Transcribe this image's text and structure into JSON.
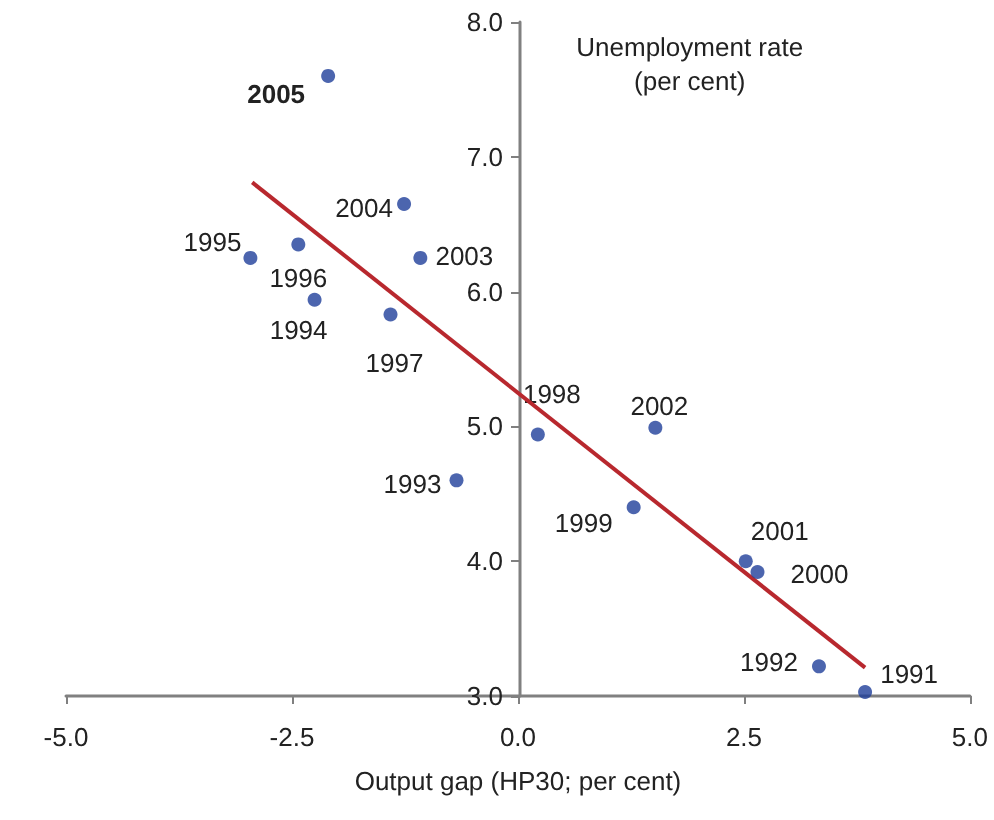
{
  "chart_data": {
    "type": "scatter",
    "xlabel": "Output gap (HP30; per cent)",
    "ylabel": "Unemployment rate\n(per cent)",
    "xlim": [
      -5,
      5
    ],
    "xticks": [
      {
        "value": -5,
        "label": "-5.0"
      },
      {
        "value": -2.5,
        "label": "-2.5"
      },
      {
        "value": 0,
        "label": "0.0"
      },
      {
        "value": 2.5,
        "label": "2.5"
      },
      {
        "value": 5,
        "label": "5.0"
      }
    ],
    "ylim": [
      3,
      8
    ],
    "yticks": [
      {
        "value": 3,
        "label": "3.0"
      },
      {
        "value": 4,
        "label": "4.0"
      },
      {
        "value": 5,
        "label": "5.0"
      },
      {
        "value": 6,
        "label": "6.0"
      },
      {
        "value": 7,
        "label": "7.0"
      },
      {
        "value": 8,
        "label": "8.0"
      }
    ],
    "grid": false,
    "marker": "circle",
    "series": [
      {
        "color": "#1f3f9a",
        "x": [
          3.84,
          3.33,
          -0.68,
          -2.25,
          -2.96,
          -2.43,
          -1.41,
          0.22,
          1.28,
          2.65,
          2.52,
          1.52,
          -1.08,
          -1.26,
          -2.1
        ],
        "values": [
          3.03,
          3.22,
          4.6,
          5.94,
          6.25,
          6.35,
          5.83,
          4.94,
          4.4,
          3.92,
          4.0,
          4.99,
          6.25,
          6.65,
          7.6
        ]
      },
      {
        "type": "line",
        "color": "#b8282e",
        "x": [
          -2.94,
          3.84
        ],
        "values": [
          6.81,
          3.21
        ],
        "marker": "none"
      }
    ],
    "annotations": [
      {
        "text": "1991",
        "x": 3.84,
        "y": 3.03
      },
      {
        "text": "1992",
        "x": 3.33,
        "y": 3.22
      },
      {
        "text": "1993",
        "x": -0.68,
        "y": 4.6
      },
      {
        "text": "1994",
        "x": -2.25,
        "y": 5.94
      },
      {
        "text": "1995",
        "x": -2.96,
        "y": 6.25
      },
      {
        "text": "1996",
        "x": -2.43,
        "y": 6.35
      },
      {
        "text": "1997",
        "x": -1.41,
        "y": 5.83
      },
      {
        "text": "1998",
        "x": 0.22,
        "y": 4.94
      },
      {
        "text": "1999",
        "x": 1.28,
        "y": 4.4
      },
      {
        "text": "2000",
        "x": 2.65,
        "y": 3.92
      },
      {
        "text": "2001",
        "x": 2.52,
        "y": 4.0
      },
      {
        "text": "2002",
        "x": 1.52,
        "y": 4.99
      },
      {
        "text": "2003",
        "x": -1.08,
        "y": 6.25
      },
      {
        "text": "2004",
        "x": -1.26,
        "y": 6.65
      },
      {
        "text": "2005",
        "x": -2.1,
        "y": 7.6
      }
    ]
  }
}
